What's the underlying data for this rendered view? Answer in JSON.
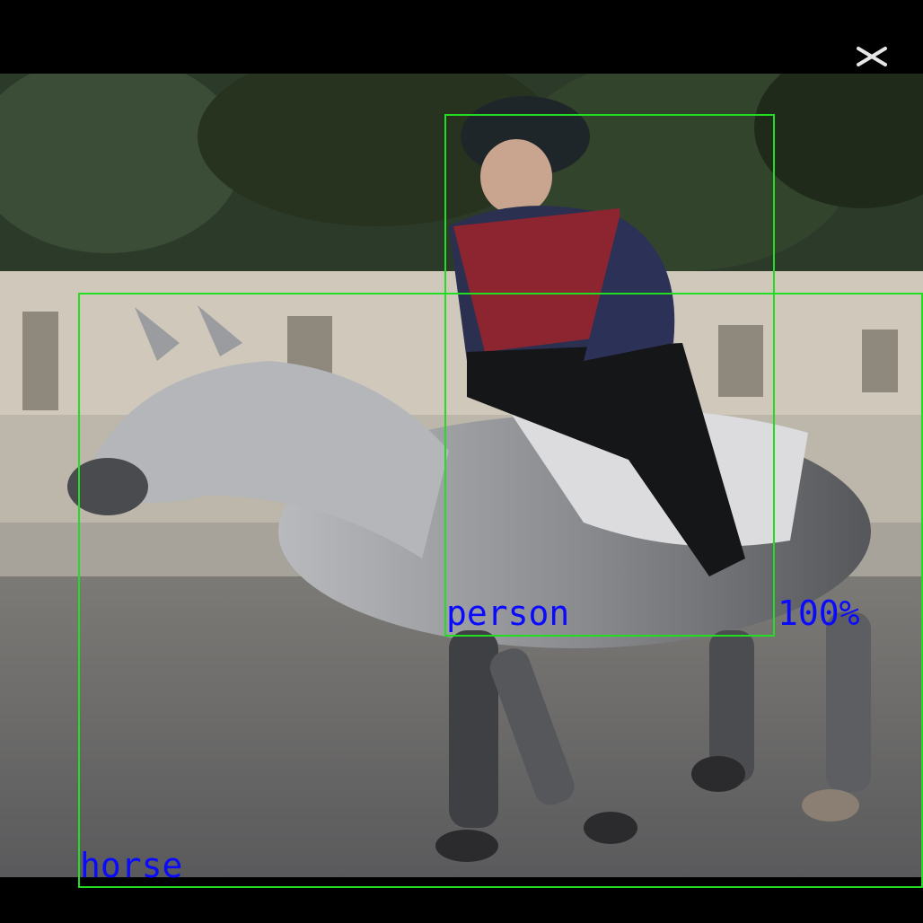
{
  "window": {
    "close_icon": "close-icon"
  },
  "detections": [
    {
      "label": "person",
      "score": "100%"
    },
    {
      "label": "horse",
      "score": ""
    }
  ],
  "colors": {
    "box_color": "#22dd22",
    "label_color": "#0a0aff",
    "background": "#000000"
  }
}
